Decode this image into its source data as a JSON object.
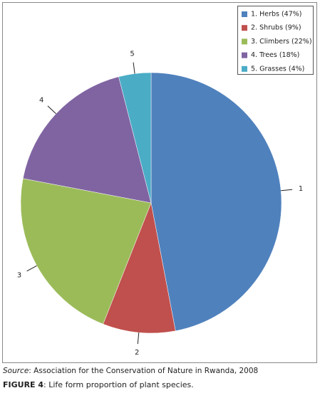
{
  "chart_data": {
    "type": "pie",
    "categories": [
      "1. Herbs (47%)",
      "2. Shrubs (9%)",
      "3. Climbers (22%)",
      "4. Trees (18%)",
      "5. Grasses (4%)"
    ],
    "values": [
      47,
      9,
      22,
      18,
      4
    ],
    "slice_labels": [
      "1",
      "2",
      "3",
      "4",
      "5"
    ],
    "colors": [
      "#4f81bd",
      "#c0504d",
      "#9bbb59",
      "#8064a2",
      "#4bacc6"
    ],
    "legend": "top-right"
  },
  "source": {
    "label": "Source",
    "text": ": Association for the Conservation of Nature in Rwanda, 2008"
  },
  "figure": {
    "label": "FIGURE 4",
    "text": ": Life form proportion of plant species."
  }
}
